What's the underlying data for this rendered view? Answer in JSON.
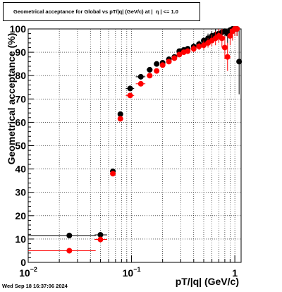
{
  "header": {
    "title": "Geometrical acceptance for Global vs pT/|q| (GeV/c) at |  η | <= 1.0"
  },
  "footer": {
    "timestamp": "Wed Sep 18 16:37:06 2024"
  },
  "colors": {
    "series_black": "#000000",
    "series_red": "#ff0000",
    "grid": "#000000",
    "background": "#ffffff"
  },
  "chart_data": {
    "type": "scatter",
    "title": "Geometrical acceptance for Global vs pT/|q| (GeV/c) at |  η | <= 1.0",
    "xlabel": "pT/|q| (GeV/c)",
    "ylabel": "Geometrical acceptance (%)",
    "xscale": "log",
    "xlim": [
      0.01,
      1.15
    ],
    "ylim": [
      0,
      100
    ],
    "grid": true,
    "legend": "none",
    "yticks": [
      0,
      10,
      20,
      30,
      40,
      50,
      60,
      70,
      80,
      90,
      100
    ],
    "xticks": [
      {
        "value": 0.01,
        "base": "10",
        "exp": "−2"
      },
      {
        "value": 0.1,
        "base": "10",
        "exp": "−1"
      },
      {
        "value": 1,
        "base": "1",
        "exp": ""
      }
    ],
    "series": [
      {
        "color": "#000000",
        "points": [
          {
            "x": 0.025,
            "y": 11.5,
            "xlo": 0.01,
            "xhi": 0.045,
            "err": 0.5
          },
          {
            "x": 0.05,
            "y": 11.8,
            "xlo": 0.044,
            "xhi": 0.058,
            "err": 0.5
          },
          {
            "x": 0.066,
            "y": 39,
            "xlo": 0.062,
            "xhi": 0.07,
            "err": 1
          },
          {
            "x": 0.078,
            "y": 63.5,
            "xlo": 0.074,
            "xhi": 0.082,
            "err": 1
          },
          {
            "x": 0.097,
            "y": 74.5,
            "xlo": 0.088,
            "xhi": 0.106,
            "err": 1
          },
          {
            "x": 0.123,
            "y": 79.5,
            "xlo": 0.11,
            "xhi": 0.136,
            "err": 1
          },
          {
            "x": 0.15,
            "y": 82.5,
            "xlo": 0.14,
            "xhi": 0.16,
            "err": 1
          },
          {
            "x": 0.175,
            "y": 85,
            "xlo": 0.165,
            "xhi": 0.185,
            "err": 1
          },
          {
            "x": 0.2,
            "y": 85.5,
            "xlo": 0.19,
            "xhi": 0.21,
            "err": 1
          },
          {
            "x": 0.23,
            "y": 87,
            "xlo": 0.22,
            "xhi": 0.24,
            "err": 1
          },
          {
            "x": 0.26,
            "y": 88,
            "xlo": 0.25,
            "xhi": 0.27,
            "err": 1
          },
          {
            "x": 0.29,
            "y": 90.5,
            "xlo": 0.28,
            "xhi": 0.3,
            "err": 1
          },
          {
            "x": 0.32,
            "y": 91,
            "xlo": 0.31,
            "xhi": 0.33,
            "err": 1
          },
          {
            "x": 0.35,
            "y": 91.5,
            "xlo": 0.34,
            "xhi": 0.36,
            "err": 1
          },
          {
            "x": 0.4,
            "y": 92.5,
            "xlo": 0.39,
            "xhi": 0.41,
            "err": 1.5
          },
          {
            "x": 0.45,
            "y": 93.5,
            "xlo": 0.44,
            "xhi": 0.46,
            "err": 1.5
          },
          {
            "x": 0.5,
            "y": 95,
            "xlo": 0.49,
            "xhi": 0.51,
            "err": 1.5
          },
          {
            "x": 0.55,
            "y": 96,
            "xlo": 0.54,
            "xhi": 0.56,
            "err": 2
          },
          {
            "x": 0.6,
            "y": 97,
            "xlo": 0.59,
            "xhi": 0.61,
            "err": 2
          },
          {
            "x": 0.65,
            "y": 97.5,
            "xlo": 0.64,
            "xhi": 0.66,
            "err": 2.5
          },
          {
            "x": 0.7,
            "y": 98,
            "xlo": 0.69,
            "xhi": 0.71,
            "err": 3
          },
          {
            "x": 0.75,
            "y": 98.5,
            "xlo": 0.74,
            "xhi": 0.76,
            "err": 3
          },
          {
            "x": 0.8,
            "y": 99,
            "xlo": 0.79,
            "xhi": 0.81,
            "err": 3
          },
          {
            "x": 0.85,
            "y": 98,
            "xlo": 0.84,
            "xhi": 0.86,
            "err": 4
          },
          {
            "x": 0.9,
            "y": 99.5,
            "xlo": 0.89,
            "xhi": 0.91,
            "err": 3
          },
          {
            "x": 0.95,
            "y": 100,
            "xlo": 0.94,
            "xhi": 0.96,
            "err": 3
          },
          {
            "x": 1.0,
            "y": 100,
            "xlo": 0.99,
            "xhi": 1.01,
            "err": 3
          },
          {
            "x": 1.05,
            "y": 100,
            "xlo": 1.04,
            "xhi": 1.06,
            "err": 3
          },
          {
            "x": 1.1,
            "y": 86,
            "xlo": 1.09,
            "xhi": 1.11,
            "err": 14
          }
        ]
      },
      {
        "color": "#ff0000",
        "points": [
          {
            "x": 0.025,
            "y": 5,
            "xlo": 0.01,
            "xhi": 0.045,
            "err": 0.5
          },
          {
            "x": 0.05,
            "y": 9.8,
            "xlo": 0.044,
            "xhi": 0.058,
            "err": 0.5
          },
          {
            "x": 0.066,
            "y": 38,
            "xlo": 0.062,
            "xhi": 0.07,
            "err": 1
          },
          {
            "x": 0.078,
            "y": 61.5,
            "xlo": 0.074,
            "xhi": 0.082,
            "err": 1
          },
          {
            "x": 0.097,
            "y": 71.5,
            "xlo": 0.088,
            "xhi": 0.106,
            "err": 1
          },
          {
            "x": 0.123,
            "y": 76.5,
            "xlo": 0.11,
            "xhi": 0.136,
            "err": 1
          },
          {
            "x": 0.15,
            "y": 80,
            "xlo": 0.14,
            "xhi": 0.16,
            "err": 1
          },
          {
            "x": 0.175,
            "y": 82,
            "xlo": 0.165,
            "xhi": 0.185,
            "err": 1
          },
          {
            "x": 0.2,
            "y": 84.5,
            "xlo": 0.19,
            "xhi": 0.21,
            "err": 1
          },
          {
            "x": 0.23,
            "y": 86,
            "xlo": 0.22,
            "xhi": 0.24,
            "err": 1
          },
          {
            "x": 0.26,
            "y": 87.5,
            "xlo": 0.25,
            "xhi": 0.27,
            "err": 1
          },
          {
            "x": 0.29,
            "y": 89,
            "xlo": 0.28,
            "xhi": 0.3,
            "err": 1
          },
          {
            "x": 0.32,
            "y": 90,
            "xlo": 0.31,
            "xhi": 0.33,
            "err": 1
          },
          {
            "x": 0.35,
            "y": 90.5,
            "xlo": 0.34,
            "xhi": 0.36,
            "err": 1
          },
          {
            "x": 0.4,
            "y": 91.5,
            "xlo": 0.39,
            "xhi": 0.41,
            "err": 1.5
          },
          {
            "x": 0.45,
            "y": 92.5,
            "xlo": 0.44,
            "xhi": 0.46,
            "err": 1.5
          },
          {
            "x": 0.5,
            "y": 93,
            "xlo": 0.49,
            "xhi": 0.51,
            "err": 2
          },
          {
            "x": 0.55,
            "y": 94,
            "xlo": 0.54,
            "xhi": 0.56,
            "err": 2
          },
          {
            "x": 0.6,
            "y": 95,
            "xlo": 0.59,
            "xhi": 0.61,
            "err": 2.5
          },
          {
            "x": 0.65,
            "y": 96,
            "xlo": 0.64,
            "xhi": 0.66,
            "err": 3
          },
          {
            "x": 0.7,
            "y": 97,
            "xlo": 0.69,
            "xhi": 0.71,
            "err": 3
          },
          {
            "x": 0.75,
            "y": 96,
            "xlo": 0.74,
            "xhi": 0.76,
            "err": 4
          },
          {
            "x": 0.8,
            "y": 92,
            "xlo": 0.79,
            "xhi": 0.81,
            "err": 5
          },
          {
            "x": 0.85,
            "y": 88,
            "xlo": 0.84,
            "xhi": 0.86,
            "err": 6
          },
          {
            "x": 0.9,
            "y": 97,
            "xlo": 0.89,
            "xhi": 0.91,
            "err": 4
          },
          {
            "x": 0.95,
            "y": 99,
            "xlo": 0.94,
            "xhi": 0.96,
            "err": 4
          },
          {
            "x": 1.0,
            "y": 100,
            "xlo": 0.99,
            "xhi": 1.01,
            "err": 3
          },
          {
            "x": 1.05,
            "y": 100,
            "xlo": 1.04,
            "xhi": 1.06,
            "err": 3
          }
        ]
      }
    ]
  }
}
